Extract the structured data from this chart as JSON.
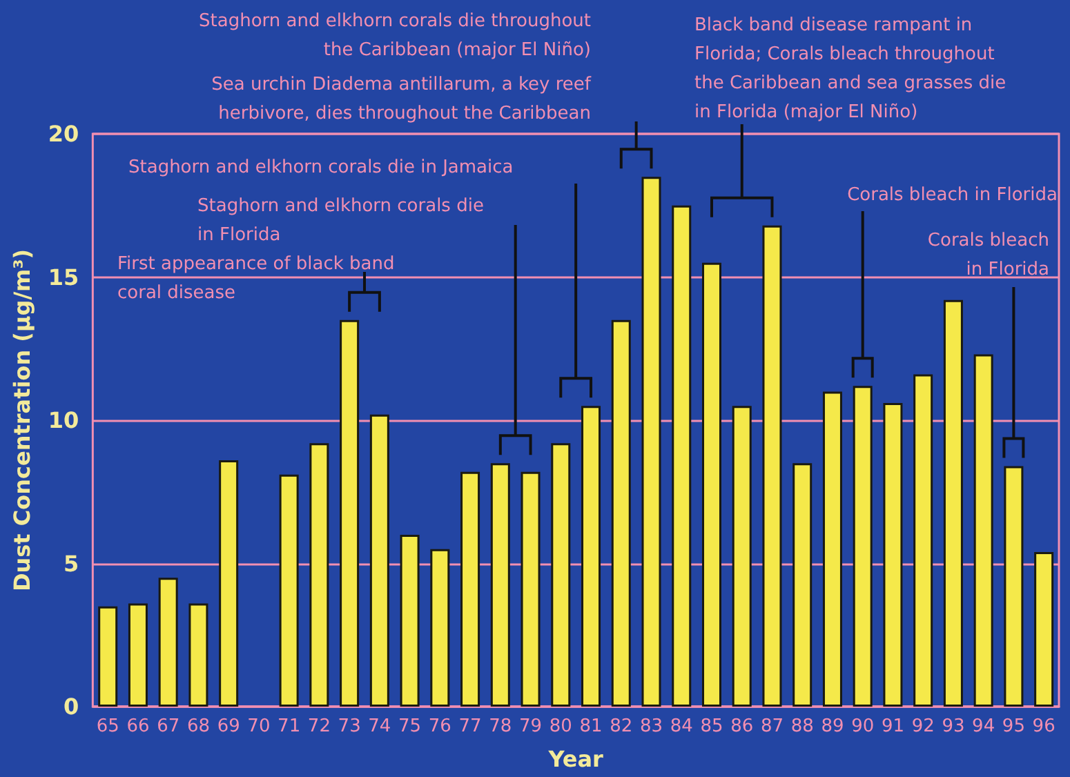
{
  "chart_data": {
    "type": "bar",
    "xlabel": "Year",
    "ylabel": "Dust Concentration (µg/m³)",
    "categories": [
      "65",
      "66",
      "67",
      "68",
      "69",
      "70",
      "71",
      "72",
      "73",
      "74",
      "75",
      "76",
      "77",
      "78",
      "79",
      "80",
      "81",
      "82",
      "83",
      "84",
      "85",
      "86",
      "87",
      "88",
      "89",
      "90",
      "91",
      "92",
      "93",
      "94",
      "95",
      "96"
    ],
    "values": [
      3.5,
      3.6,
      4.5,
      3.6,
      8.6,
      null,
      8.1,
      9.2,
      13.5,
      10.2,
      6.0,
      5.5,
      8.2,
      8.5,
      8.2,
      9.2,
      10.5,
      13.5,
      18.5,
      17.5,
      15.5,
      10.5,
      16.8,
      8.5,
      11.0,
      11.2,
      10.6,
      11.6,
      14.2,
      12.3,
      8.4,
      5.4
    ],
    "color": "#f5e94a",
    "ylim": [
      0,
      20
    ],
    "yticks": [
      0,
      5,
      10,
      15,
      20
    ],
    "grid": "y",
    "annotations": [
      "Staghorn and elkhorn corals die throughout\nthe Caribbean (major El Niño)",
      "Sea urchin Diadema antillarum, a key reef\nherbivore, dies throughout the Caribbean",
      "Black band disease rampant in\nFlorida; Corals bleach throughout\nthe Caribbean and sea grasses die\nin Florida (major El Niño)",
      "Staghorn and elkhorn corals die in Jamaica",
      "Staghorn and elkhorn corals die\nin Florida",
      "First appearance of black band\ncoral disease",
      "Corals bleach in Florida",
      "Corals bleach\nin Florida"
    ]
  }
}
